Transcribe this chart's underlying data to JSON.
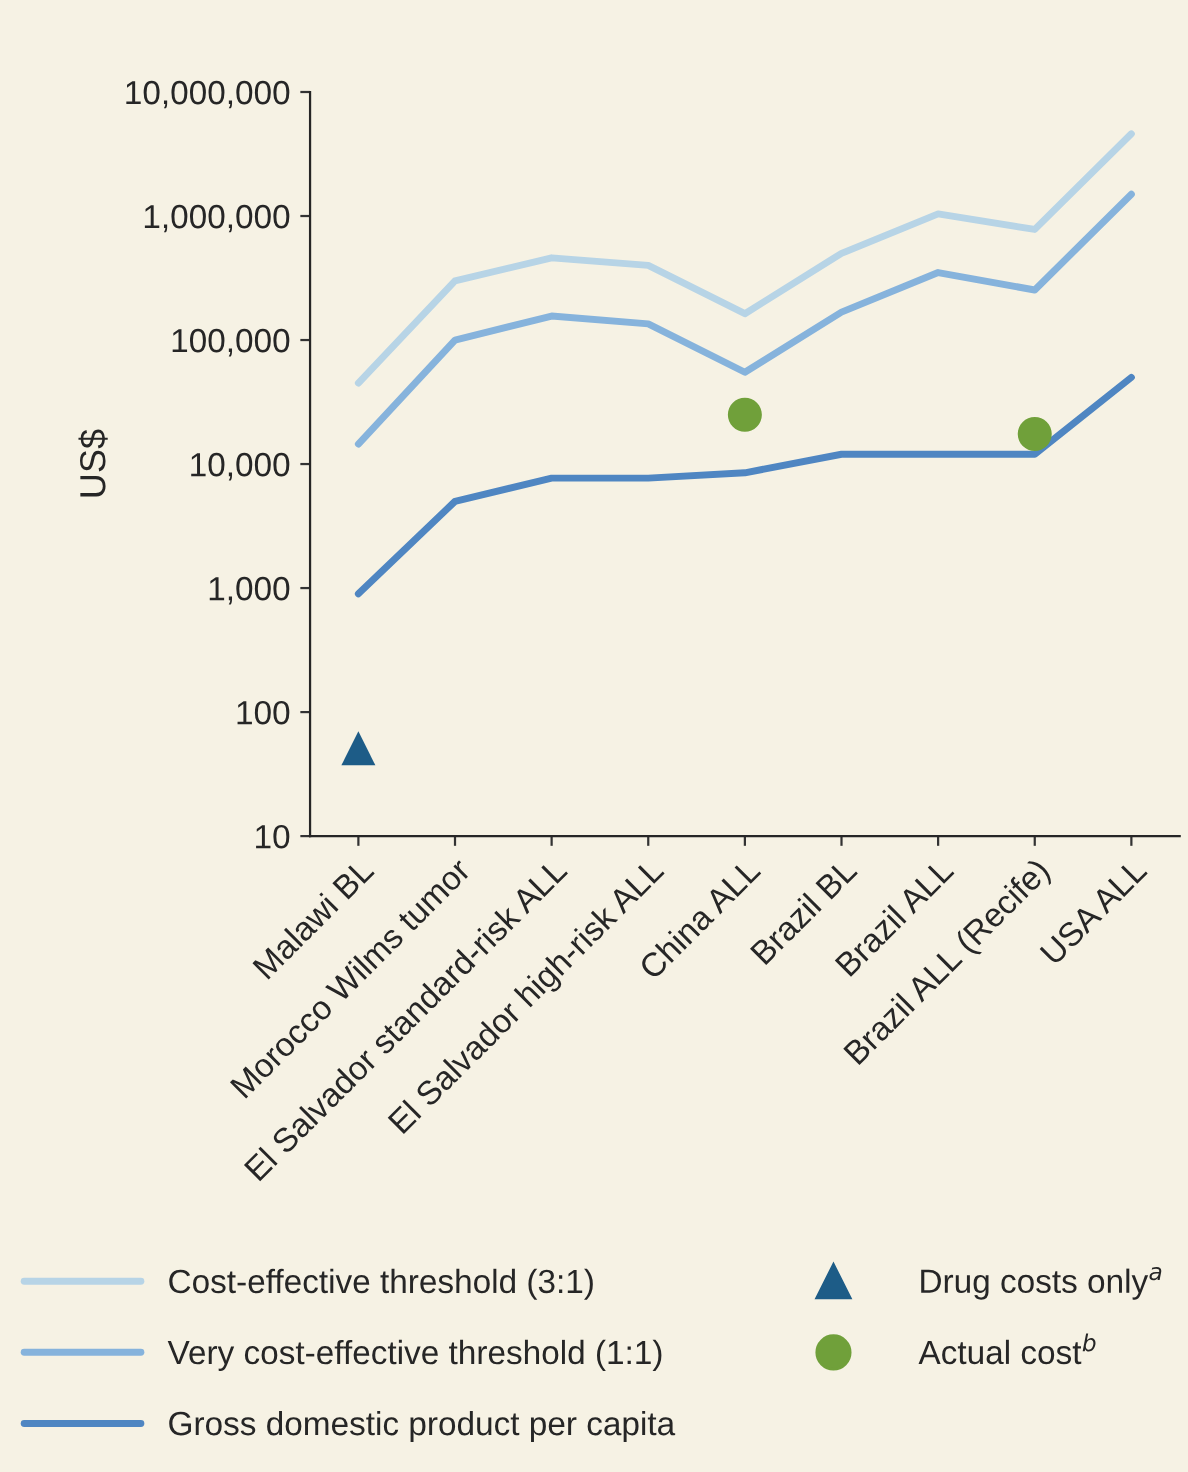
{
  "chart_data": {
    "type": "line",
    "ylabel": "US$",
    "log": true,
    "grid": false,
    "legend": "bottom",
    "categories": [
      "Malawi BL",
      "Morocco Wilms tumor",
      "El Salvador standard-risk ALL",
      "El Salvador high-risk ALL",
      "China ALL",
      "Brazil BL",
      "Brazil ALL",
      "Brazil ALL (Recife)",
      "USA ALL"
    ],
    "ylim": [
      10,
      10000000
    ],
    "yticks": [
      10,
      100,
      {
        "value": 1000,
        "label": "1,000"
      },
      {
        "value": 10000,
        "label": "10,000"
      },
      {
        "value": 100000,
        "label": "100,000"
      },
      {
        "value": 1000000,
        "label": "1,000,000"
      },
      {
        "value": 10000000,
        "label": "10,000,000"
      }
    ],
    "series": [
      {
        "name": "Cost-effective threshold (3:1)",
        "color": "#b7d4e6",
        "marker": "none",
        "values": [
          45000,
          300000,
          460000,
          400000,
          163000,
          500000,
          1040000,
          780000,
          4600000
        ]
      },
      {
        "name": "Very cost-effective threshold (1:1)",
        "color": "#86b3dc",
        "marker": "none",
        "values": [
          14500,
          100000,
          156000,
          135000,
          55000,
          168000,
          350000,
          253000,
          1500000
        ]
      },
      {
        "name": "Gross domestic product per capita",
        "color": "#4f86c2",
        "marker": "none",
        "values": [
          900,
          5000,
          7700,
          7700,
          8500,
          12000,
          12000,
          12000,
          50000
        ]
      },
      {
        "name": "Drug costs only$^{a}$",
        "type": "scatter",
        "color": "#1d5c87",
        "marker": "triangle",
        "x": [
          "Malawi BL"
        ],
        "values": [
          51
        ]
      },
      {
        "name": "Actual cost$^{b}$",
        "type": "scatter",
        "color": "#70a03a",
        "marker": "circle",
        "x": [
          "China ALL",
          "Brazil ALL (Recife)"
        ],
        "values": [
          25000,
          17500
        ]
      }
    ]
  }
}
